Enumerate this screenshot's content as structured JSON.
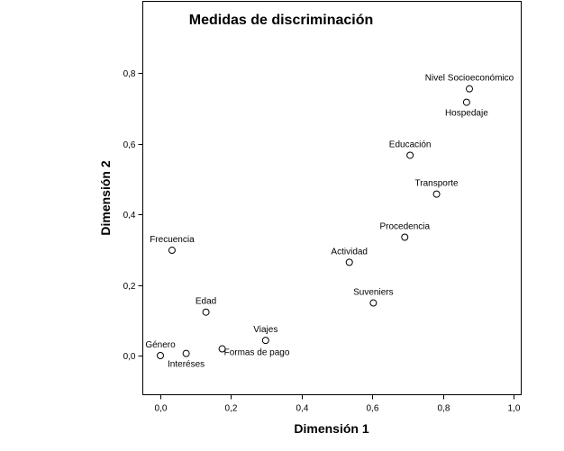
{
  "chart_data": {
    "type": "scatter",
    "title": "Medidas de discriminación",
    "xlabel": "Dimensión 1",
    "ylabel": "Dimensión 2",
    "xlim": [
      -0.05,
      1.02
    ],
    "ylim": [
      -0.11,
      1.0
    ],
    "xticks": [
      0.0,
      0.2,
      0.4,
      0.6,
      0.8,
      1.0
    ],
    "xtick_labels": [
      "0,0",
      "0,2",
      "0,4",
      "0,6",
      "0,8",
      "1,0"
    ],
    "yticks": [
      0.0,
      0.2,
      0.4,
      0.6,
      0.8
    ],
    "ytick_labels": [
      "0,0",
      "0,2",
      "0,4",
      "0,6",
      "0,8"
    ],
    "grid": false,
    "points": [
      {
        "label": "Nivel Socioeconómico",
        "x": 0.875,
        "y": 0.755,
        "label_pos": "above"
      },
      {
        "label": "Hospedaje",
        "x": 0.867,
        "y": 0.717,
        "label_pos": "below"
      },
      {
        "label": "Educación",
        "x": 0.707,
        "y": 0.567,
        "label_pos": "above"
      },
      {
        "label": "Transporte",
        "x": 0.782,
        "y": 0.457,
        "label_pos": "above"
      },
      {
        "label": "Procedencia",
        "x": 0.692,
        "y": 0.335,
        "label_pos": "above"
      },
      {
        "label": "Actividad",
        "x": 0.535,
        "y": 0.264,
        "label_pos": "above"
      },
      {
        "label": "Frecuencia",
        "x": 0.033,
        "y": 0.298,
        "label_pos": "above"
      },
      {
        "label": "Suveniers",
        "x": 0.603,
        "y": 0.149,
        "label_pos": "above"
      },
      {
        "label": "Edad",
        "x": 0.129,
        "y": 0.123,
        "label_pos": "above"
      },
      {
        "label": "Viajes",
        "x": 0.298,
        "y": 0.043,
        "label_pos": "above"
      },
      {
        "label": "Formas de pago",
        "x": 0.175,
        "y": 0.019,
        "label_pos": "right-below"
      },
      {
        "label": "Interéses",
        "x": 0.073,
        "y": 0.006,
        "label_pos": "below"
      },
      {
        "label": "Género",
        "x": 0.0,
        "y": 0.0,
        "label_pos": "above"
      }
    ]
  }
}
